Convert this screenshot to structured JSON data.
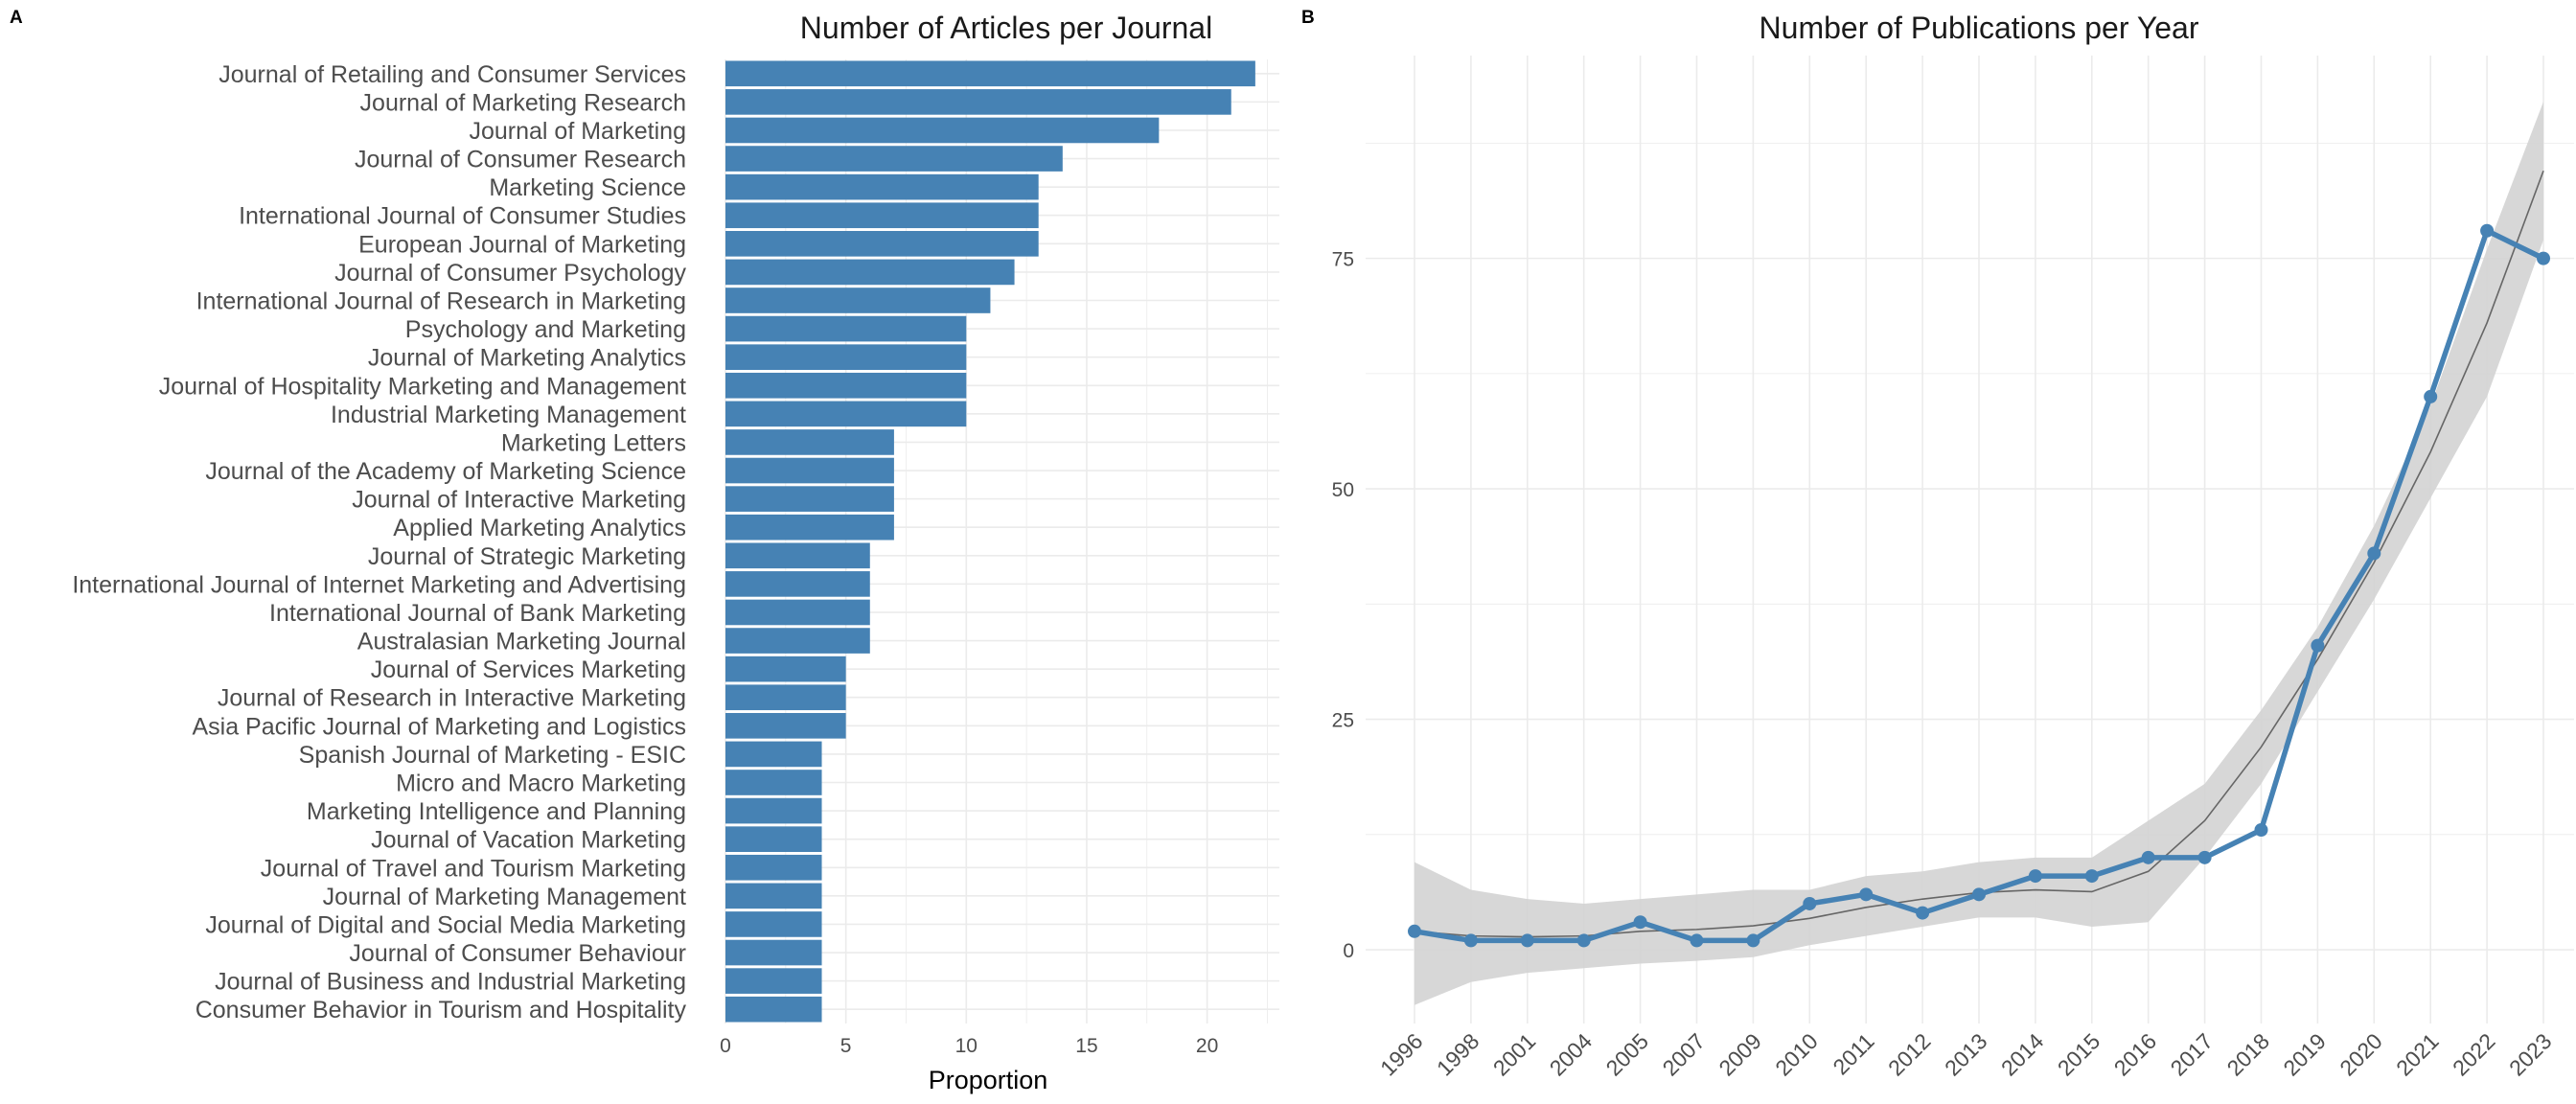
{
  "panels": {
    "a_label": "A",
    "b_label": "B"
  },
  "colors": {
    "bar": "#4682B4",
    "line": "#4682B4",
    "smooth": "#666666",
    "band": "#D3D3D3",
    "grid": "#EBEBEB",
    "text": "#4D4D4D",
    "title": "#1A1A1A"
  },
  "chart_data": [
    {
      "type": "bar",
      "orientation": "horizontal",
      "title": "Number of Articles per Journal",
      "xlabel": "Proportion",
      "ylabel": "",
      "xlim": [
        0,
        23
      ],
      "xticks": [
        0,
        5,
        10,
        15,
        20
      ],
      "grid": true,
      "legend": "none",
      "categories": [
        "Journal of Retailing and Consumer Services",
        "Journal of Marketing Research",
        "Journal of Marketing",
        "Journal of Consumer Research",
        "Marketing Science",
        "International Journal of Consumer Studies",
        "European Journal of Marketing",
        "Journal of Consumer Psychology",
        "International Journal of Research in Marketing",
        "Psychology and Marketing",
        "Journal of Marketing Analytics",
        "Journal of Hospitality Marketing and Management",
        "Industrial Marketing Management",
        "Marketing Letters",
        "Journal of the Academy of Marketing Science",
        "Journal of Interactive Marketing",
        "Applied Marketing Analytics",
        "Journal of Strategic Marketing",
        "International Journal of Internet Marketing and Advertising",
        "International Journal of Bank Marketing",
        "Australasian Marketing Journal",
        "Journal of Services Marketing",
        "Journal of Research in Interactive Marketing",
        "Asia Pacific Journal of Marketing and Logistics",
        "Spanish Journal of Marketing - ESIC",
        "Micro and Macro Marketing",
        "Marketing Intelligence and Planning",
        "Journal of Vacation Marketing",
        "Journal of Travel and Tourism Marketing",
        "Journal of Marketing Management",
        "Journal of Digital and Social Media Marketing",
        "Journal of Consumer Behaviour",
        "Journal of Business and Industrial Marketing",
        "Consumer Behavior in Tourism and Hospitality"
      ],
      "values": [
        22,
        21,
        18,
        14,
        13,
        13,
        13,
        12,
        11,
        10,
        10,
        10,
        10,
        7,
        7,
        7,
        7,
        6,
        6,
        6,
        6,
        5,
        5,
        5,
        4,
        4,
        4,
        4,
        4,
        4,
        4,
        4,
        4,
        4
      ]
    },
    {
      "type": "line",
      "title": "Number of Publications per Year",
      "xlabel": "",
      "ylabel": "",
      "ylim": [
        -8,
        97
      ],
      "yticks": [
        0,
        25,
        50,
        75
      ],
      "grid": true,
      "legend": "none",
      "x": [
        "1996",
        "1998",
        "2001",
        "2004",
        "2005",
        "2007",
        "2009",
        "2010",
        "2011",
        "2012",
        "2013",
        "2014",
        "2015",
        "2016",
        "2017",
        "2018",
        "2019",
        "2020",
        "2021",
        "2022",
        "2023"
      ],
      "series": [
        {
          "values": [
            2,
            1,
            1,
            1,
            3,
            1,
            1,
            5,
            6,
            4,
            6,
            8,
            8,
            10,
            10,
            13,
            33,
            43,
            60,
            78,
            75
          ]
        }
      ],
      "smooth_trend": {
        "fit": [
          2,
          1.5,
          1.4,
          1.5,
          2,
          2.2,
          2.6,
          3.4,
          4.6,
          5.5,
          6.2,
          6.5,
          6.3,
          8.5,
          14,
          22,
          31.5,
          42,
          54,
          68,
          84.5
        ],
        "lower": [
          -6,
          -3.5,
          -2.5,
          -2,
          -1.5,
          -1.2,
          -0.8,
          0.5,
          1.5,
          2.5,
          3.5,
          3.5,
          2.5,
          3,
          10,
          18,
          28,
          38,
          49,
          60,
          77
        ],
        "upper": [
          9.5,
          6.5,
          5.5,
          5,
          5.5,
          6,
          6.5,
          6.5,
          8,
          8.5,
          9.5,
          10,
          10,
          14,
          18,
          26,
          35,
          46,
          59,
          76,
          92
        ]
      }
    }
  ]
}
